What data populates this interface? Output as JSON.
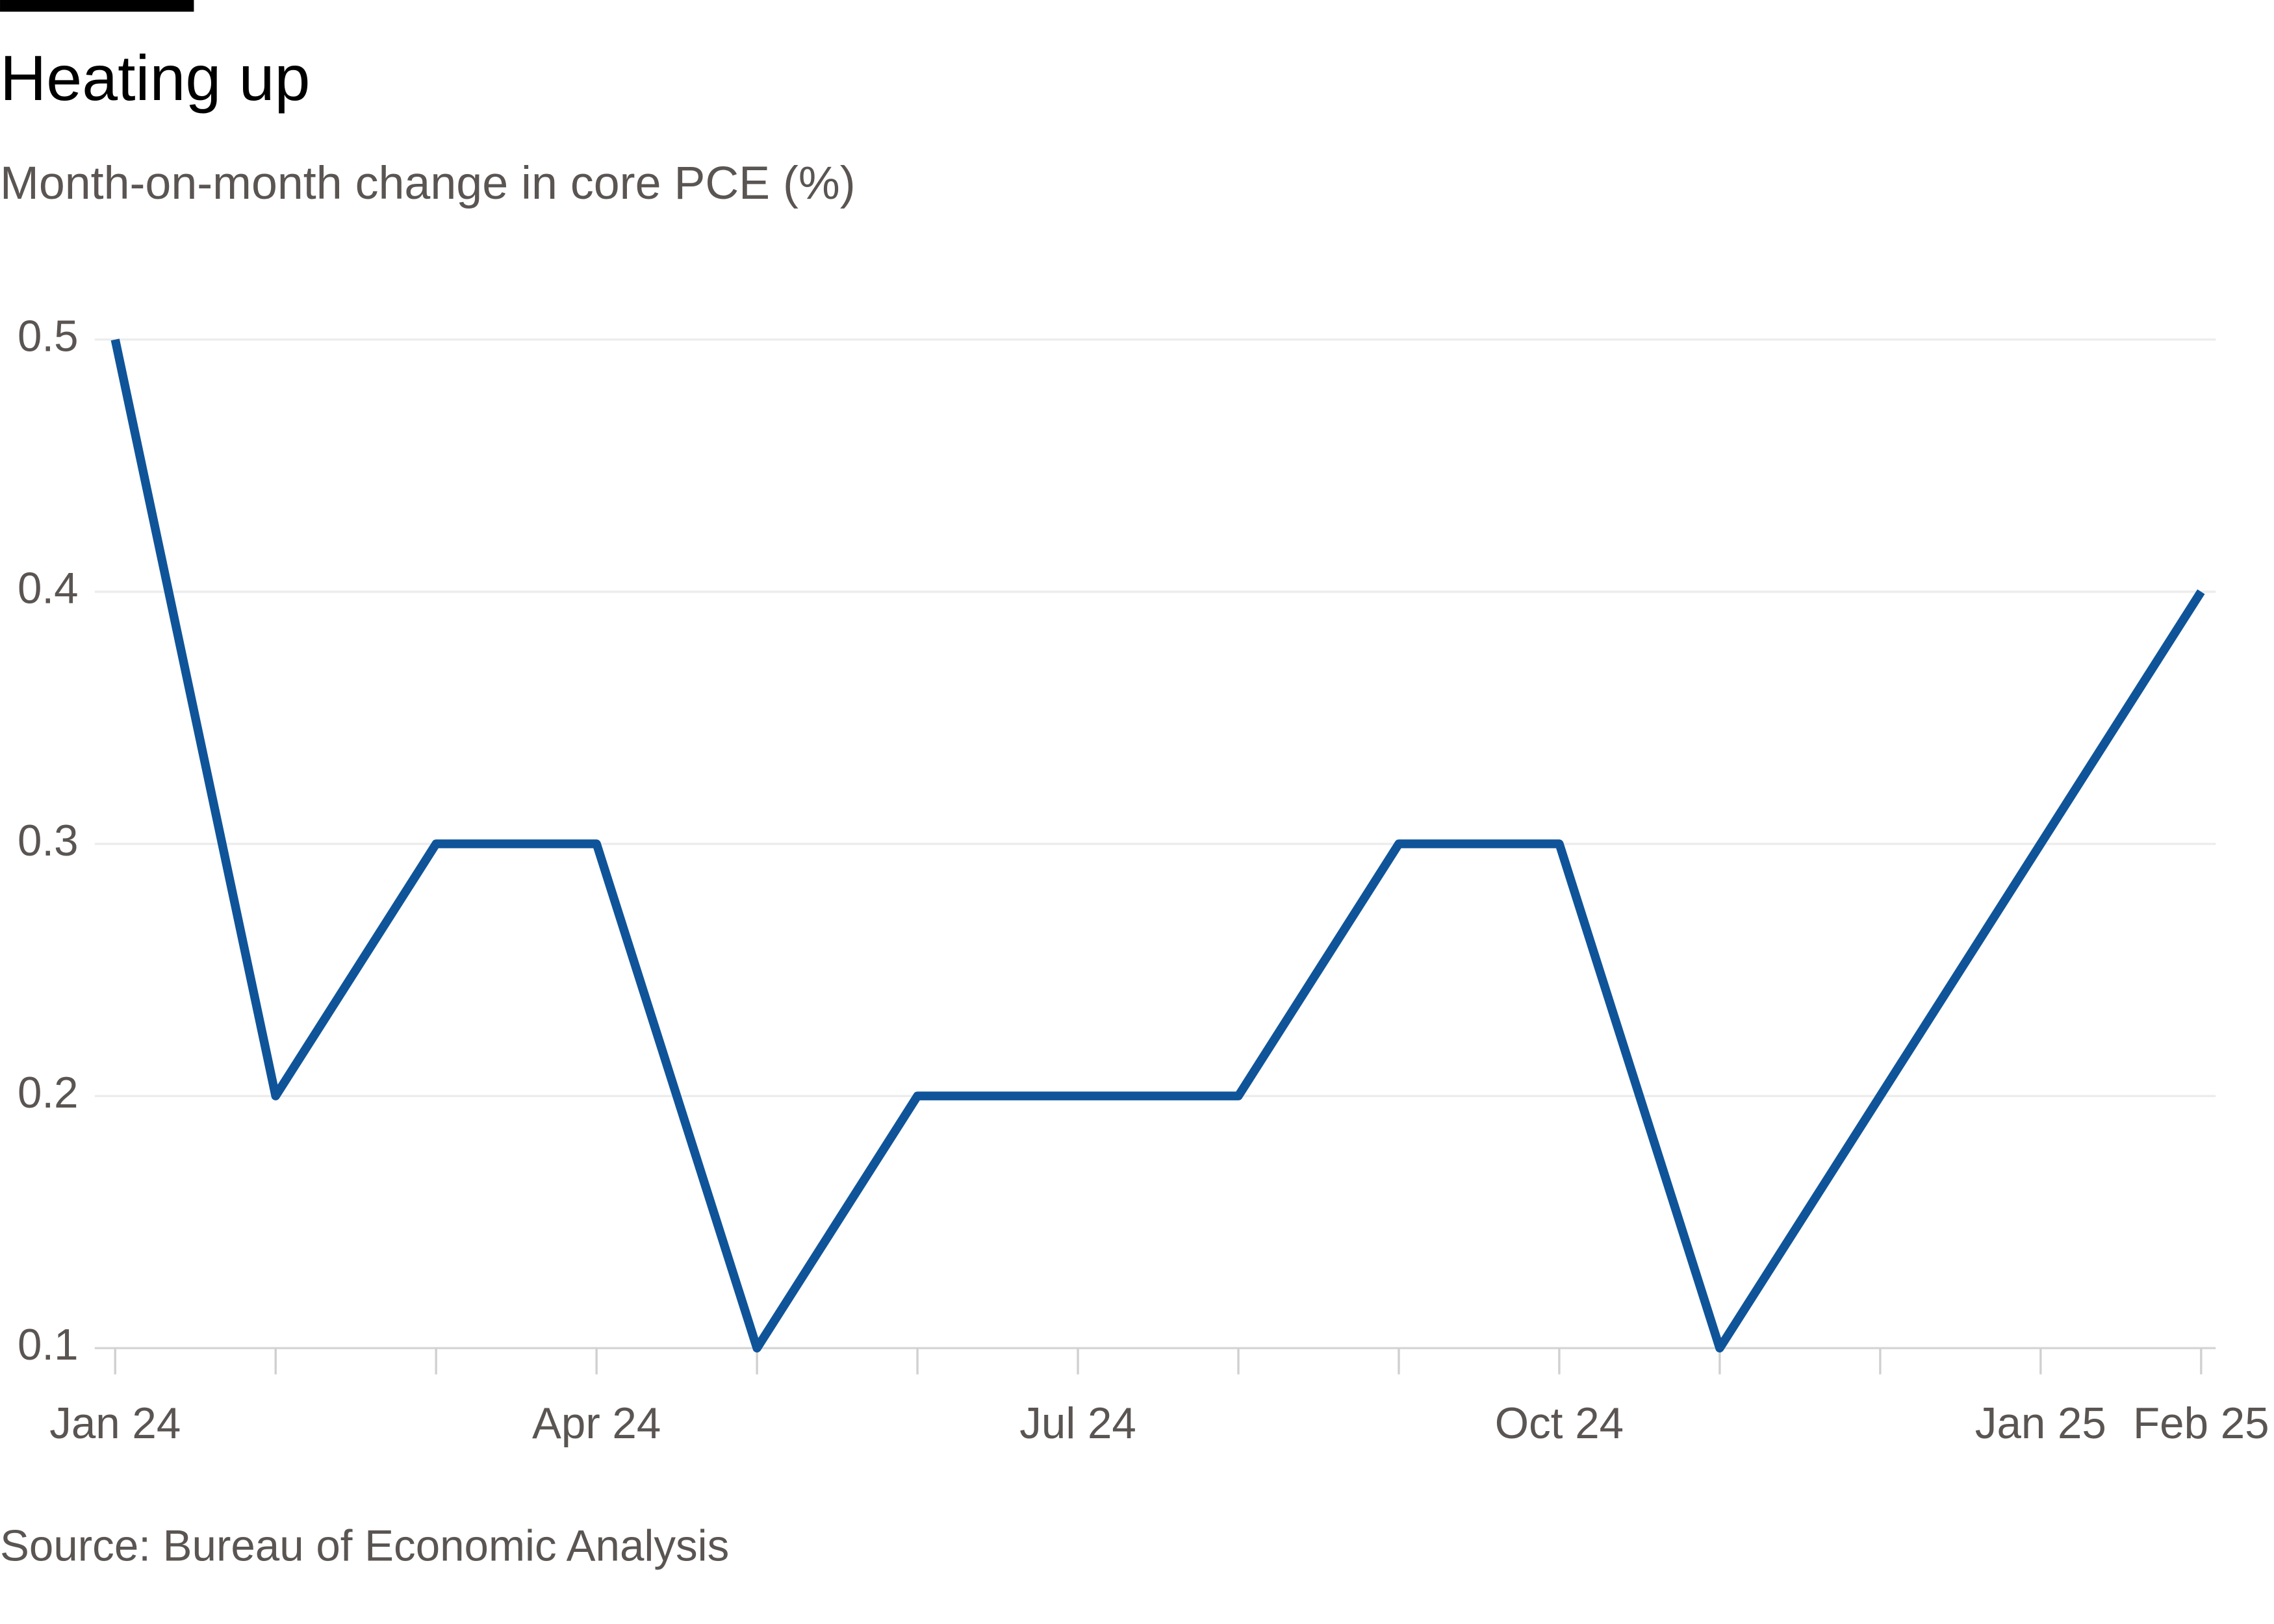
{
  "chart_data": {
    "type": "line",
    "title": "Heating up",
    "subtitle": "Month-on-month change in core PCE (%)",
    "source": "Source: Bureau of Economic Analysis",
    "categories": [
      "Jan 24",
      null,
      null,
      "Apr 24",
      null,
      null,
      "Jul 24",
      null,
      null,
      "Oct 24",
      null,
      null,
      "Jan 25",
      "Feb 25"
    ],
    "values": [
      0.5,
      0.2,
      0.3,
      0.3,
      0.1,
      0.2,
      0.2,
      0.2,
      0.3,
      0.3,
      0.1,
      0.2,
      0.3,
      0.4
    ],
    "color": "#0f5499",
    "ylim": [
      0.1,
      0.5
    ],
    "yticks": [
      0.1,
      0.2,
      0.3,
      0.4,
      0.5
    ],
    "grid": true
  }
}
